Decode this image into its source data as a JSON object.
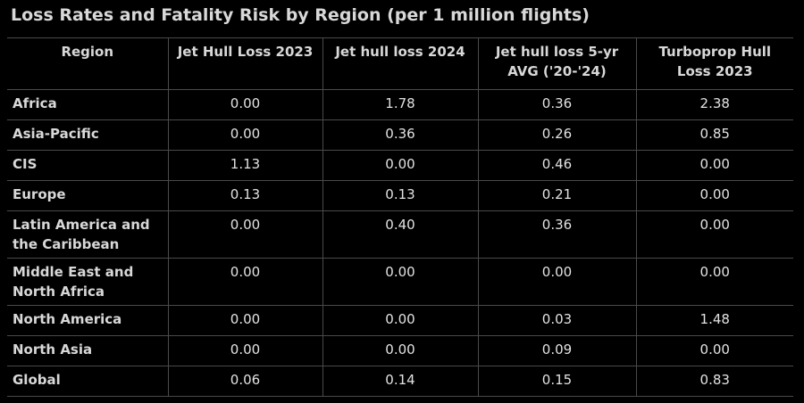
{
  "title": "Loss Rates and Fatality Risk by Region (per 1 million flights)",
  "table": {
    "header": [
      "Region",
      "Jet Hull Loss 2023",
      "Jet hull loss 2024",
      "Jet hull loss 5-yr AVG ('20-'24)",
      "Turboprop Hull Loss 2023"
    ],
    "rows": [
      [
        "Africa",
        "0.00",
        "1.78",
        "0.36",
        "2.38"
      ],
      [
        "Asia-Pacific",
        "0.00",
        "0.36",
        "0.26",
        "0.85"
      ],
      [
        "CIS",
        "1.13",
        "0.00",
        "0.46",
        "0.00"
      ],
      [
        "Europe",
        "0.13",
        "0.13",
        "0.21",
        "0.00"
      ],
      [
        "Latin America and the Caribbean",
        "0.00",
        "0.40",
        "0.36",
        "0.00"
      ],
      [
        "Middle East and North Africa",
        "0.00",
        "0.00",
        "0.00",
        "0.00"
      ],
      [
        "North America",
        "0.00",
        "0.00",
        "0.03",
        "1.48"
      ],
      [
        "North Asia",
        "0.00",
        "0.00",
        "0.09",
        "0.00"
      ],
      [
        "Global",
        "0.06",
        "0.14",
        "0.15",
        "0.83"
      ]
    ]
  }
}
